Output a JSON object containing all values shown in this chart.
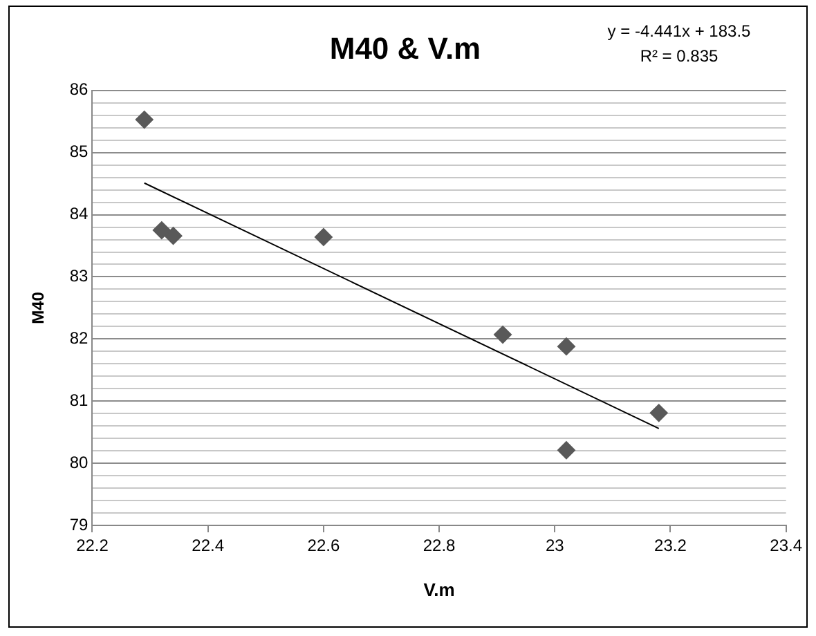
{
  "chart_data": {
    "type": "scatter",
    "title": "M40 & V.m",
    "xlabel": "V.m",
    "ylabel": "M40",
    "x": [
      22.29,
      22.32,
      22.34,
      22.6,
      22.91,
      23.02,
      23.02,
      23.18
    ],
    "series": [
      {
        "color": "#595959",
        "marker": "diamond",
        "values": [
          85.53,
          83.75,
          83.66,
          83.64,
          82.07,
          81.88,
          80.21,
          80.81
        ]
      },
      {
        "type": "line",
        "color": "#000000",
        "marker": "none",
        "x": [
          22.29,
          23.18
        ],
        "values": [
          84.51,
          80.56
        ]
      }
    ],
    "xlim": [
      22.2,
      23.4
    ],
    "xticks": [
      22.2,
      22.4,
      22.6,
      22.8,
      23,
      23.2,
      23.4
    ],
    "ylim": [
      79,
      86
    ],
    "yticks": [
      79,
      {
        "value": 79.2,
        "label": null
      },
      {
        "value": 79.4,
        "label": null
      },
      {
        "value": 79.6,
        "label": null
      },
      {
        "value": 79.8,
        "label": null
      },
      80,
      {
        "value": 80.2,
        "label": null
      },
      {
        "value": 80.4,
        "label": null
      },
      {
        "value": 80.6,
        "label": null
      },
      {
        "value": 80.8,
        "label": null
      },
      81,
      {
        "value": 81.2,
        "label": null
      },
      {
        "value": 81.4,
        "label": null
      },
      {
        "value": 81.6,
        "label": null
      },
      {
        "value": 81.8,
        "label": null
      },
      82,
      {
        "value": 82.2,
        "label": null
      },
      {
        "value": 82.4,
        "label": null
      },
      {
        "value": 82.6,
        "label": null
      },
      {
        "value": 82.8,
        "label": null
      },
      83,
      {
        "value": 83.2,
        "label": null
      },
      {
        "value": 83.4,
        "label": null
      },
      {
        "value": 83.6,
        "label": null
      },
      {
        "value": 83.8,
        "label": null
      },
      84,
      {
        "value": 84.2,
        "label": null
      },
      {
        "value": 84.4,
        "label": null
      },
      {
        "value": 84.6,
        "label": null
      },
      {
        "value": 84.8,
        "label": null
      },
      85,
      {
        "value": 85.2,
        "label": null
      },
      {
        "value": 85.4,
        "label": null
      },
      {
        "value": 85.6,
        "label": null
      },
      {
        "value": 85.8,
        "label": null
      },
      86
    ],
    "grid": "y",
    "legend": false,
    "annotations": [
      "y = -4.441x + 183.5",
      "R² = 0.835"
    ]
  }
}
